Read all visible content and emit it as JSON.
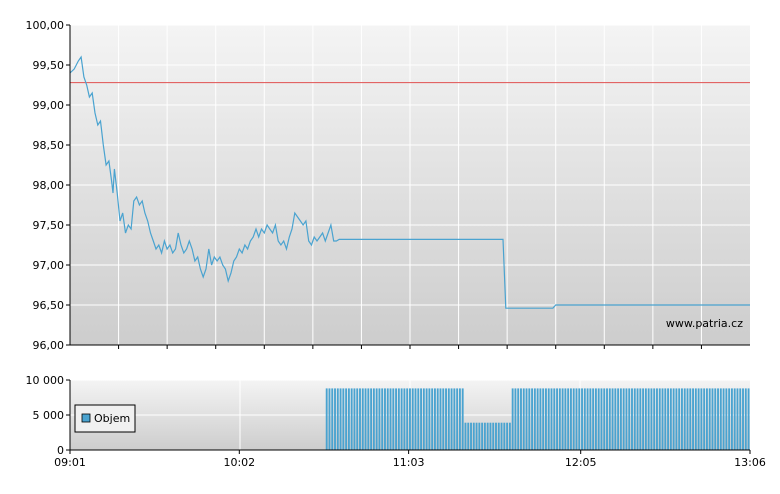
{
  "colors": {
    "price_line": "#4aa3d0",
    "reference_line": "#e05050",
    "volume_bar": "#4aa3d0",
    "volume_bar_edge": "#2a6f97",
    "grid": "#ffffff",
    "plot_top": "#f4f4f4",
    "plot_bottom": "#cdcdcd"
  },
  "chart_data": [
    {
      "type": "line",
      "title": "",
      "watermark": "www.patria.cz",
      "y_ticks": [
        "100,00",
        "99,50",
        "99,00",
        "98,50",
        "98,00",
        "97,50",
        "97,00",
        "96,50",
        "96,00"
      ],
      "y_tick_values": [
        100,
        99.5,
        99,
        98.5,
        98,
        97.5,
        97,
        96.5,
        96
      ],
      "ylim": [
        96,
        100
      ],
      "xlim": [
        0,
        245
      ],
      "reference_value": 99.28,
      "grid": true,
      "series": [
        {
          "points": [
            [
              0,
              99.4
            ],
            [
              1.5,
              99.45
            ],
            [
              3,
              99.55
            ],
            [
              4,
              99.6
            ],
            [
              5,
              99.35
            ],
            [
              6,
              99.25
            ],
            [
              7,
              99.1
            ],
            [
              8,
              99.15
            ],
            [
              9,
              98.9
            ],
            [
              10,
              98.75
            ],
            [
              11,
              98.8
            ],
            [
              12,
              98.5
            ],
            [
              13,
              98.25
            ],
            [
              14,
              98.3
            ],
            [
              15,
              98.05
            ],
            [
              15.5,
              97.9
            ],
            [
              16,
              98.2
            ],
            [
              17,
              97.9
            ],
            [
              18,
              97.55
            ],
            [
              19,
              97.65
            ],
            [
              20,
              97.4
            ],
            [
              21,
              97.5
            ],
            [
              22,
              97.45
            ],
            [
              23,
              97.8
            ],
            [
              24,
              97.85
            ],
            [
              25,
              97.75
            ],
            [
              26,
              97.8
            ],
            [
              27,
              97.65
            ],
            [
              28,
              97.55
            ],
            [
              29,
              97.4
            ],
            [
              30,
              97.3
            ],
            [
              31,
              97.2
            ],
            [
              32,
              97.25
            ],
            [
              33,
              97.15
            ],
            [
              34,
              97.3
            ],
            [
              35,
              97.2
            ],
            [
              36,
              97.25
            ],
            [
              37,
              97.15
            ],
            [
              38,
              97.2
            ],
            [
              39,
              97.4
            ],
            [
              40,
              97.25
            ],
            [
              41,
              97.15
            ],
            [
              42,
              97.2
            ],
            [
              43,
              97.3
            ],
            [
              44,
              97.2
            ],
            [
              45,
              97.05
            ],
            [
              46,
              97.1
            ],
            [
              47,
              96.95
            ],
            [
              48,
              96.85
            ],
            [
              49,
              96.95
            ],
            [
              50,
              97.2
            ],
            [
              51,
              97.0
            ],
            [
              52,
              97.1
            ],
            [
              53,
              97.05
            ],
            [
              54,
              97.1
            ],
            [
              55,
              97.0
            ],
            [
              56,
              96.95
            ],
            [
              57,
              96.8
            ],
            [
              58,
              96.9
            ],
            [
              59,
              97.05
            ],
            [
              60,
              97.1
            ],
            [
              61,
              97.2
            ],
            [
              62,
              97.15
            ],
            [
              63,
              97.25
            ],
            [
              64,
              97.2
            ],
            [
              65,
              97.3
            ],
            [
              66,
              97.35
            ],
            [
              67,
              97.45
            ],
            [
              68,
              97.35
            ],
            [
              69,
              97.45
            ],
            [
              70,
              97.4
            ],
            [
              71,
              97.5
            ],
            [
              72,
              97.45
            ],
            [
              73,
              97.4
            ],
            [
              74,
              97.5
            ],
            [
              75,
              97.3
            ],
            [
              76,
              97.25
            ],
            [
              77,
              97.3
            ],
            [
              78,
              97.2
            ],
            [
              79,
              97.35
            ],
            [
              80,
              97.45
            ],
            [
              81,
              97.65
            ],
            [
              82,
              97.6
            ],
            [
              83,
              97.55
            ],
            [
              84,
              97.5
            ],
            [
              85,
              97.55
            ],
            [
              86,
              97.3
            ],
            [
              87,
              97.25
            ],
            [
              88,
              97.35
            ],
            [
              89,
              97.3
            ],
            [
              90,
              97.35
            ],
            [
              91,
              97.4
            ],
            [
              92,
              97.3
            ],
            [
              93,
              97.4
            ],
            [
              94,
              97.5
            ],
            [
              95,
              97.3
            ],
            [
              96,
              97.3
            ],
            [
              97,
              97.32
            ],
            [
              105,
              97.32
            ],
            [
              120,
              97.32
            ],
            [
              140,
              97.32
            ],
            [
              156,
              97.32
            ],
            [
              157,
              96.46
            ],
            [
              174,
              96.46
            ],
            [
              175,
              96.5
            ],
            [
              200,
              96.5
            ],
            [
              245,
              96.5
            ]
          ]
        }
      ]
    },
    {
      "type": "bar",
      "title": "",
      "x_ticks": [
        "09:01",
        "10:02",
        "11:03",
        "12:05",
        "13:06"
      ],
      "x_tick_values": [
        0,
        61,
        122,
        184,
        245
      ],
      "xlim": [
        0,
        245
      ],
      "y_ticks": [
        "10 000",
        "5 000",
        "0"
      ],
      "y_tick_values": [
        10000,
        5000,
        0
      ],
      "ylim": [
        0,
        10000
      ],
      "grid": true,
      "legend_position": "left",
      "series": [
        {
          "name": "Objem",
          "segments": [
            {
              "from": 92,
              "to": 142,
              "value": 8800
            },
            {
              "from": 142,
              "to": 159,
              "value": 3900
            },
            {
              "from": 159,
              "to": 245,
              "value": 8800
            }
          ]
        }
      ]
    }
  ]
}
